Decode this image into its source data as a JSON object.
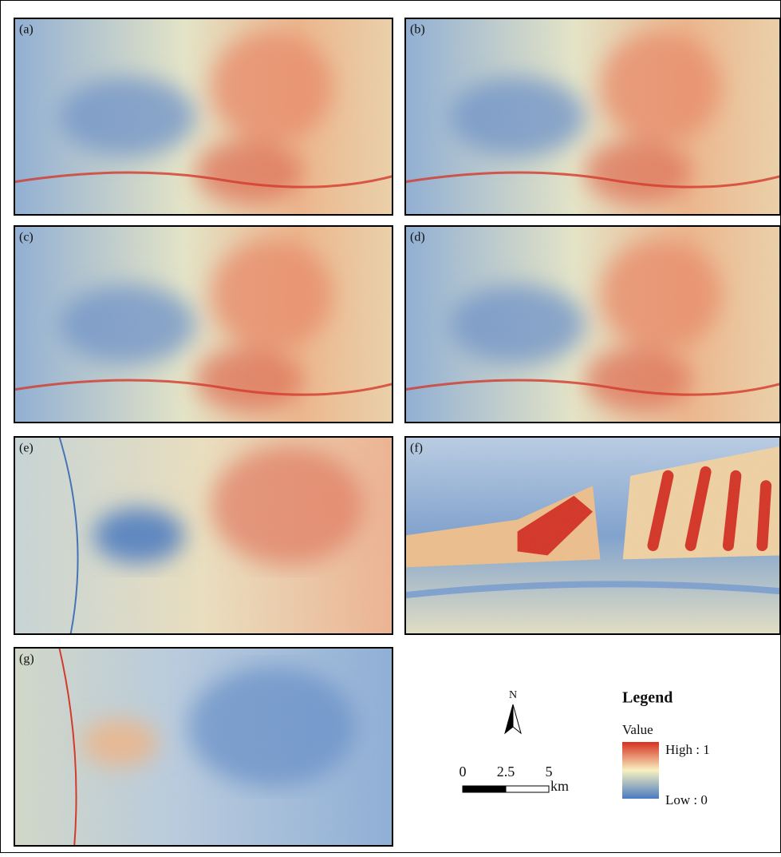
{
  "panels": [
    {
      "label": "(a)"
    },
    {
      "label": "(b)"
    },
    {
      "label": "(c)"
    },
    {
      "label": "(d)"
    },
    {
      "label": "(e)"
    },
    {
      "label": "(f)"
    },
    {
      "label": "(g)"
    }
  ],
  "north_arrow": {
    "label": "N"
  },
  "scale_bar": {
    "ticks": [
      0,
      2.5,
      5
    ],
    "unit": "km"
  },
  "legend": {
    "title": "Legend",
    "field": "Value",
    "high": "High : 1",
    "low": "Low : 0"
  }
}
